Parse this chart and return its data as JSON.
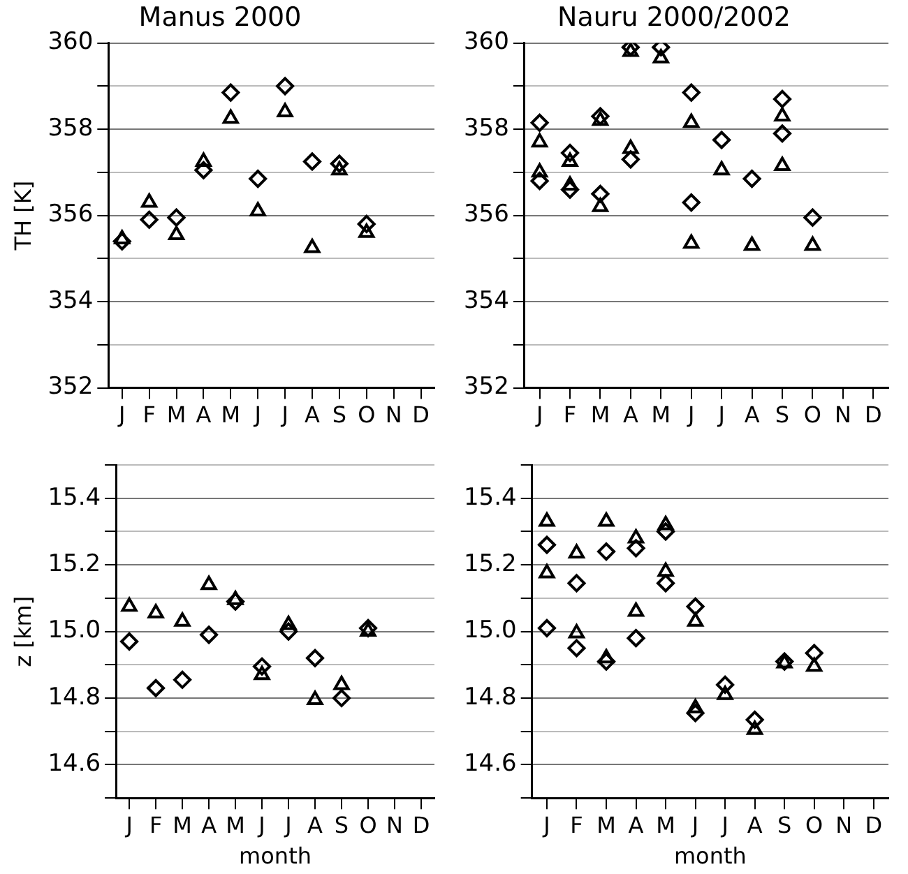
{
  "chart_data": [
    {
      "type": "scatter",
      "title": "Manus 2000",
      "ylabel": "TH [K]",
      "categories": [
        "J",
        "F",
        "M",
        "A",
        "M",
        "J",
        "J",
        "A",
        "S",
        "O",
        "N",
        "D"
      ],
      "ylim": [
        352,
        360
      ],
      "yticks": [
        352,
        {
          "value": 353,
          "label": null
        },
        354,
        {
          "value": 355,
          "label": null
        },
        356,
        {
          "value": 357,
          "label": null
        },
        358,
        {
          "value": 359,
          "label": null
        },
        360
      ],
      "grid": "y",
      "legend": false,
      "series": [
        {
          "color": "#000000",
          "marker": "diamond",
          "values": [
            355.4,
            355.9,
            355.95,
            357.05,
            358.85,
            356.85,
            359.0,
            357.25,
            357.2,
            355.8,
            null,
            null
          ]
        },
        {
          "color": "#000000",
          "marker": "triangle",
          "values": [
            355.45,
            356.3,
            355.55,
            357.25,
            358.25,
            356.1,
            358.4,
            355.25,
            357.05,
            355.6,
            null,
            null
          ]
        }
      ]
    },
    {
      "type": "scatter",
      "title": "Nauru 2000/2002",
      "categories": [
        "J",
        "F",
        "M",
        "A",
        "M",
        "J",
        "J",
        "A",
        "S",
        "O",
        "N",
        "D"
      ],
      "ylim": [
        352,
        360
      ],
      "yticks": [
        352,
        {
          "value": 353,
          "label": null
        },
        354,
        {
          "value": 355,
          "label": null
        },
        356,
        {
          "value": 357,
          "label": null
        },
        358,
        {
          "value": 359,
          "label": null
        },
        360
      ],
      "grid": "y",
      "legend": false,
      "series": [
        {
          "color": "#000000",
          "marker": "diamond",
          "values": [
            356.8,
            356.6,
            356.5,
            357.3,
            359.9,
            356.3,
            357.75,
            356.85,
            358.7,
            355.95,
            null,
            null
          ]
        },
        {
          "color": "#000000",
          "marker": "triangle",
          "values": [
            357.0,
            356.7,
            356.2,
            357.55,
            359.65,
            355.35,
            357.05,
            355.3,
            358.3,
            355.3,
            null,
            null
          ]
        },
        {
          "color": "#000000",
          "marker": "diamond",
          "values": [
            358.15,
            357.45,
            358.3,
            359.9,
            null,
            358.85,
            null,
            null,
            357.9,
            null,
            null,
            null
          ]
        },
        {
          "color": "#000000",
          "marker": "triangle",
          "values": [
            357.7,
            357.25,
            358.2,
            359.8,
            null,
            358.15,
            null,
            null,
            357.15,
            null,
            null,
            null
          ]
        }
      ]
    },
    {
      "type": "scatter",
      "xlabel": "month",
      "ylabel": "z [km]",
      "categories": [
        "J",
        "F",
        "M",
        "A",
        "M",
        "J",
        "J",
        "A",
        "S",
        "O",
        "N",
        "D"
      ],
      "ylim": [
        14.5,
        15.5
      ],
      "yticks": [
        {
          "value": 14.5,
          "label": null
        },
        14.6,
        {
          "value": 14.7,
          "label": null
        },
        14.8,
        {
          "value": 14.9,
          "label": null
        },
        "15.0",
        {
          "value": 15.1,
          "label": null
        },
        15.2,
        {
          "value": 15.3,
          "label": null
        },
        15.4,
        {
          "value": 15.5,
          "label": null
        }
      ],
      "grid": "y",
      "legend": false,
      "series": [
        {
          "color": "#000000",
          "marker": "diamond",
          "values": [
            14.97,
            14.83,
            14.855,
            14.99,
            15.09,
            14.895,
            15.0,
            14.92,
            14.8,
            15.01,
            null,
            null
          ]
        },
        {
          "color": "#000000",
          "marker": "triangle",
          "values": [
            15.075,
            15.055,
            15.03,
            15.14,
            15.095,
            14.87,
            15.02,
            14.795,
            14.84,
            15.0,
            null,
            null
          ]
        }
      ]
    },
    {
      "type": "scatter",
      "xlabel": "month",
      "categories": [
        "J",
        "F",
        "M",
        "A",
        "M",
        "J",
        "J",
        "A",
        "S",
        "O",
        "N",
        "D"
      ],
      "ylim": [
        14.5,
        15.5
      ],
      "yticks": [
        {
          "value": 14.5,
          "label": null
        },
        14.6,
        {
          "value": 14.7,
          "label": null
        },
        14.8,
        {
          "value": 14.9,
          "label": null
        },
        "15.0",
        {
          "value": 15.1,
          "label": null
        },
        15.2,
        {
          "value": 15.3,
          "label": null
        },
        15.4,
        {
          "value": 15.5,
          "label": null
        }
      ],
      "grid": "y",
      "legend": false,
      "series": [
        {
          "color": "#000000",
          "marker": "diamond",
          "values": [
            15.01,
            14.95,
            14.91,
            14.98,
            15.145,
            14.755,
            14.84,
            14.735,
            14.91,
            14.935,
            null,
            null
          ]
        },
        {
          "color": "#000000",
          "marker": "triangle",
          "values": [
            15.175,
            14.995,
            14.92,
            15.06,
            15.18,
            14.77,
            14.81,
            14.705,
            14.905,
            14.895,
            null,
            null
          ]
        },
        {
          "color": "#000000",
          "marker": "diamond",
          "values": [
            15.26,
            15.145,
            15.24,
            15.25,
            15.3,
            15.075,
            null,
            null,
            null,
            null,
            null,
            null
          ]
        },
        {
          "color": "#000000",
          "marker": "triangle",
          "values": [
            15.33,
            15.235,
            15.33,
            15.28,
            15.32,
            15.03,
            null,
            null,
            null,
            null,
            null,
            null
          ]
        }
      ]
    }
  ]
}
